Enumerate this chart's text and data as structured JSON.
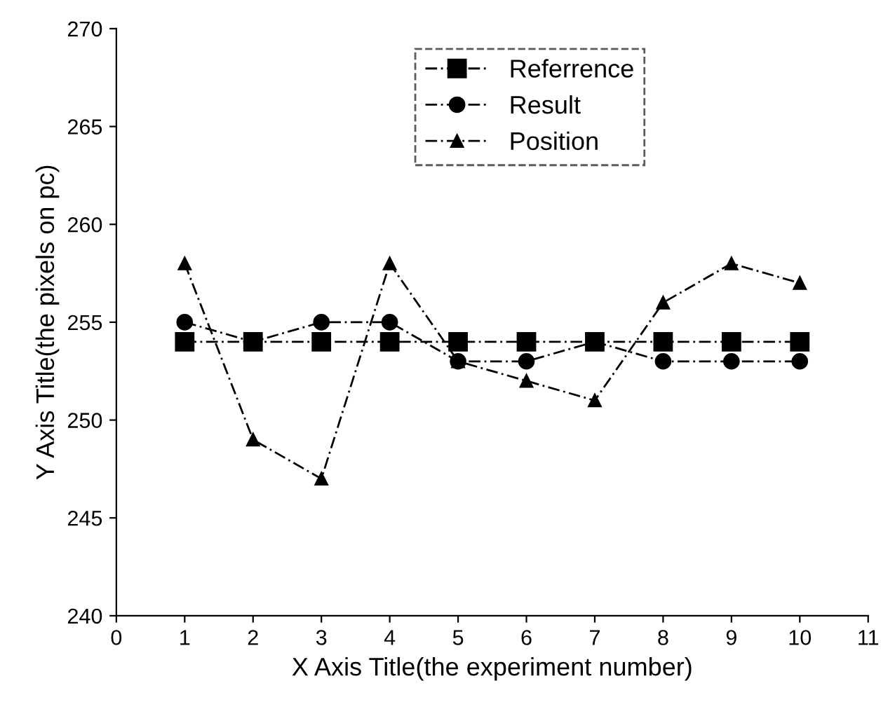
{
  "chart_data": {
    "type": "line",
    "xlabel": "X Axis Title(the experiment number)",
    "ylabel": "Y Axis Title(the pixels on pc)",
    "x": [
      1,
      2,
      3,
      4,
      5,
      6,
      7,
      8,
      9,
      10
    ],
    "series": [
      {
        "name": "Referrence",
        "color": "#000000",
        "marker": "square",
        "line_style": "dashed",
        "values": [
          254,
          254,
          254,
          254,
          254,
          254,
          254,
          254,
          254,
          254
        ]
      },
      {
        "name": "Result",
        "color": "#000000",
        "marker": "circle",
        "line_style": "dashed",
        "values": [
          255,
          254,
          255,
          255,
          253,
          253,
          254,
          253,
          253,
          253
        ]
      },
      {
        "name": "Position",
        "color": "#000000",
        "marker": "triangle",
        "line_style": "dashed",
        "values": [
          258,
          249,
          247,
          258,
          253,
          252,
          251,
          256,
          258,
          257
        ]
      }
    ],
    "xlim": [
      0,
      11
    ],
    "xticks": [
      0,
      1,
      2,
      3,
      4,
      5,
      6,
      7,
      8,
      9,
      10,
      11
    ],
    "ylim": [
      240,
      270
    ],
    "yticks": [
      240,
      245,
      250,
      255,
      260,
      265,
      270
    ],
    "grid": false,
    "legend": "top"
  }
}
